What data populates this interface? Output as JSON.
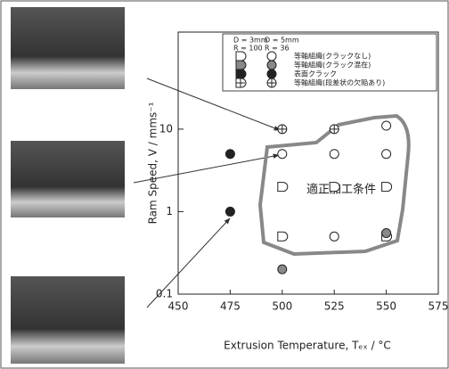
{
  "chart_data": {
    "type": "scatter",
    "xlabel": "Extrusion Temperature, Tₑₓ / °C",
    "ylabel": "Ram Speed, V / mms⁻¹",
    "xlim": [
      450,
      575
    ],
    "xticks": [
      450,
      475,
      500,
      525,
      550,
      575
    ],
    "ylim": [
      0.1,
      150
    ],
    "yticks": [
      0.1,
      1,
      10
    ],
    "log_y": true,
    "annotation": "適正加工条件",
    "legend": {
      "die": [
        "D = 3mm",
        "D = 5mm"
      ],
      "ratio": [
        "R = 100",
        "R = 36"
      ]
    },
    "series": [
      {
        "name": "等軸組織(クラックなし)",
        "marker": "open",
        "x": [
          550,
          500,
          525,
          550,
          525
        ],
        "y": [
          11,
          5,
          5,
          5,
          0.5
        ],
        "x_d3": [
          500,
          525,
          550,
          500,
          550
        ],
        "y_d3": [
          2,
          2,
          2,
          0.5,
          0.5
        ]
      },
      {
        "name": "等軸組織(クラック混在)",
        "marker": "half",
        "x": [
          500,
          550
        ],
        "y": [
          0.2,
          0.55
        ],
        "x_d3": [],
        "y_d3": []
      },
      {
        "name": "表面クラック",
        "marker": "filled",
        "x": [
          475,
          475
        ],
        "y": [
          5,
          1
        ],
        "x_d3": [],
        "y_d3": []
      },
      {
        "name": "等軸組織(段差状の欠陥あり)",
        "marker": "cross",
        "x": [
          500,
          525
        ],
        "y": [
          10,
          10
        ],
        "x_d3": [],
        "y_d3": []
      }
    ]
  }
}
